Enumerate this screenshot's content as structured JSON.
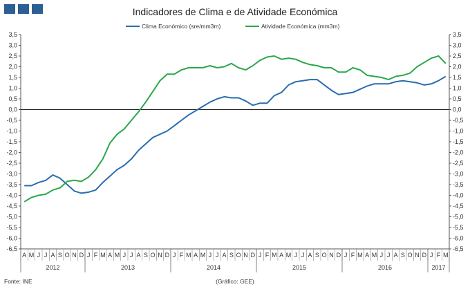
{
  "chart_data": {
    "type": "line",
    "title": "Indicadores de Clima e de Atividade Económica",
    "ylim": [
      -6.5,
      3.5
    ],
    "y_ticks": [
      "3,5",
      "3,0",
      "2,5",
      "2,0",
      "1,5",
      "1,0",
      "0,5",
      "0,0",
      "-0,5",
      "-1,0",
      "-1,5",
      "-2,0",
      "-2,5",
      "-3,0",
      "-3,5",
      "-4,0",
      "-4,5",
      "-5,0",
      "-5,5",
      "-6,0",
      "-6,5"
    ],
    "months": [
      "A",
      "M",
      "J",
      "J",
      "A",
      "S",
      "O",
      "N",
      "D",
      "J",
      "F",
      "M",
      "A",
      "M",
      "J",
      "J",
      "A",
      "S",
      "O",
      "N",
      "D",
      "J",
      "F",
      "M",
      "A",
      "M",
      "J",
      "J",
      "A",
      "S",
      "O",
      "N",
      "D",
      "J",
      "F",
      "M",
      "A",
      "M",
      "J",
      "J",
      "A",
      "S",
      "O",
      "N",
      "D",
      "J",
      "F",
      "M",
      "A",
      "M",
      "J",
      "J",
      "A",
      "S",
      "O",
      "N",
      "D",
      "J",
      "F",
      "M"
    ],
    "years": [
      {
        "label": "2012",
        "start": 0,
        "end": 8
      },
      {
        "label": "2013",
        "start": 9,
        "end": 20
      },
      {
        "label": "2014",
        "start": 21,
        "end": 32
      },
      {
        "label": "2015",
        "start": 33,
        "end": 44
      },
      {
        "label": "2016",
        "start": 45,
        "end": 56
      },
      {
        "label": "2017",
        "start": 57,
        "end": 59
      }
    ],
    "series": [
      {
        "name": "Clima Económico (sre/mm3m)",
        "color": "#2a6cae",
        "values": [
          -3.55,
          -3.55,
          -3.4,
          -3.3,
          -3.05,
          -3.2,
          -3.5,
          -3.8,
          -3.9,
          -3.85,
          -3.75,
          -3.4,
          -3.1,
          -2.8,
          -2.6,
          -2.3,
          -1.9,
          -1.6,
          -1.3,
          -1.15,
          -1.0,
          -0.75,
          -0.5,
          -0.25,
          -0.05,
          0.15,
          0.35,
          0.5,
          0.6,
          0.55,
          0.55,
          0.4,
          0.2,
          0.3,
          0.3,
          0.65,
          0.8,
          1.15,
          1.3,
          1.35,
          1.4,
          1.4,
          1.15,
          0.9,
          0.7,
          0.75,
          0.8,
          0.95,
          1.1,
          1.2,
          1.2,
          1.2,
          1.3,
          1.35,
          1.3,
          1.25,
          1.15,
          1.2,
          1.35,
          1.55
        ]
      },
      {
        "name": "Atividade Económica (mm3m)",
        "color": "#2aa74a",
        "values": [
          -4.3,
          -4.1,
          -4.0,
          -3.95,
          -3.75,
          -3.65,
          -3.35,
          -3.3,
          -3.35,
          -3.15,
          -2.8,
          -2.3,
          -1.55,
          -1.15,
          -0.9,
          -0.5,
          -0.1,
          0.35,
          0.85,
          1.35,
          1.65,
          1.65,
          1.85,
          1.95,
          1.95,
          1.95,
          2.05,
          1.95,
          2.0,
          2.15,
          1.95,
          1.85,
          2.05,
          2.3,
          2.45,
          2.5,
          2.35,
          2.4,
          2.35,
          2.2,
          2.1,
          2.05,
          1.95,
          1.95,
          1.75,
          1.75,
          1.95,
          1.85,
          1.6,
          1.55,
          1.5,
          1.4,
          1.55,
          1.6,
          1.7,
          2.0,
          2.2,
          2.4,
          2.5,
          2.15
        ]
      }
    ],
    "source": "Fonte: INE",
    "credit": "(Gráfico: GEE)"
  },
  "branding": {
    "logo_color": "#2c5f93"
  }
}
